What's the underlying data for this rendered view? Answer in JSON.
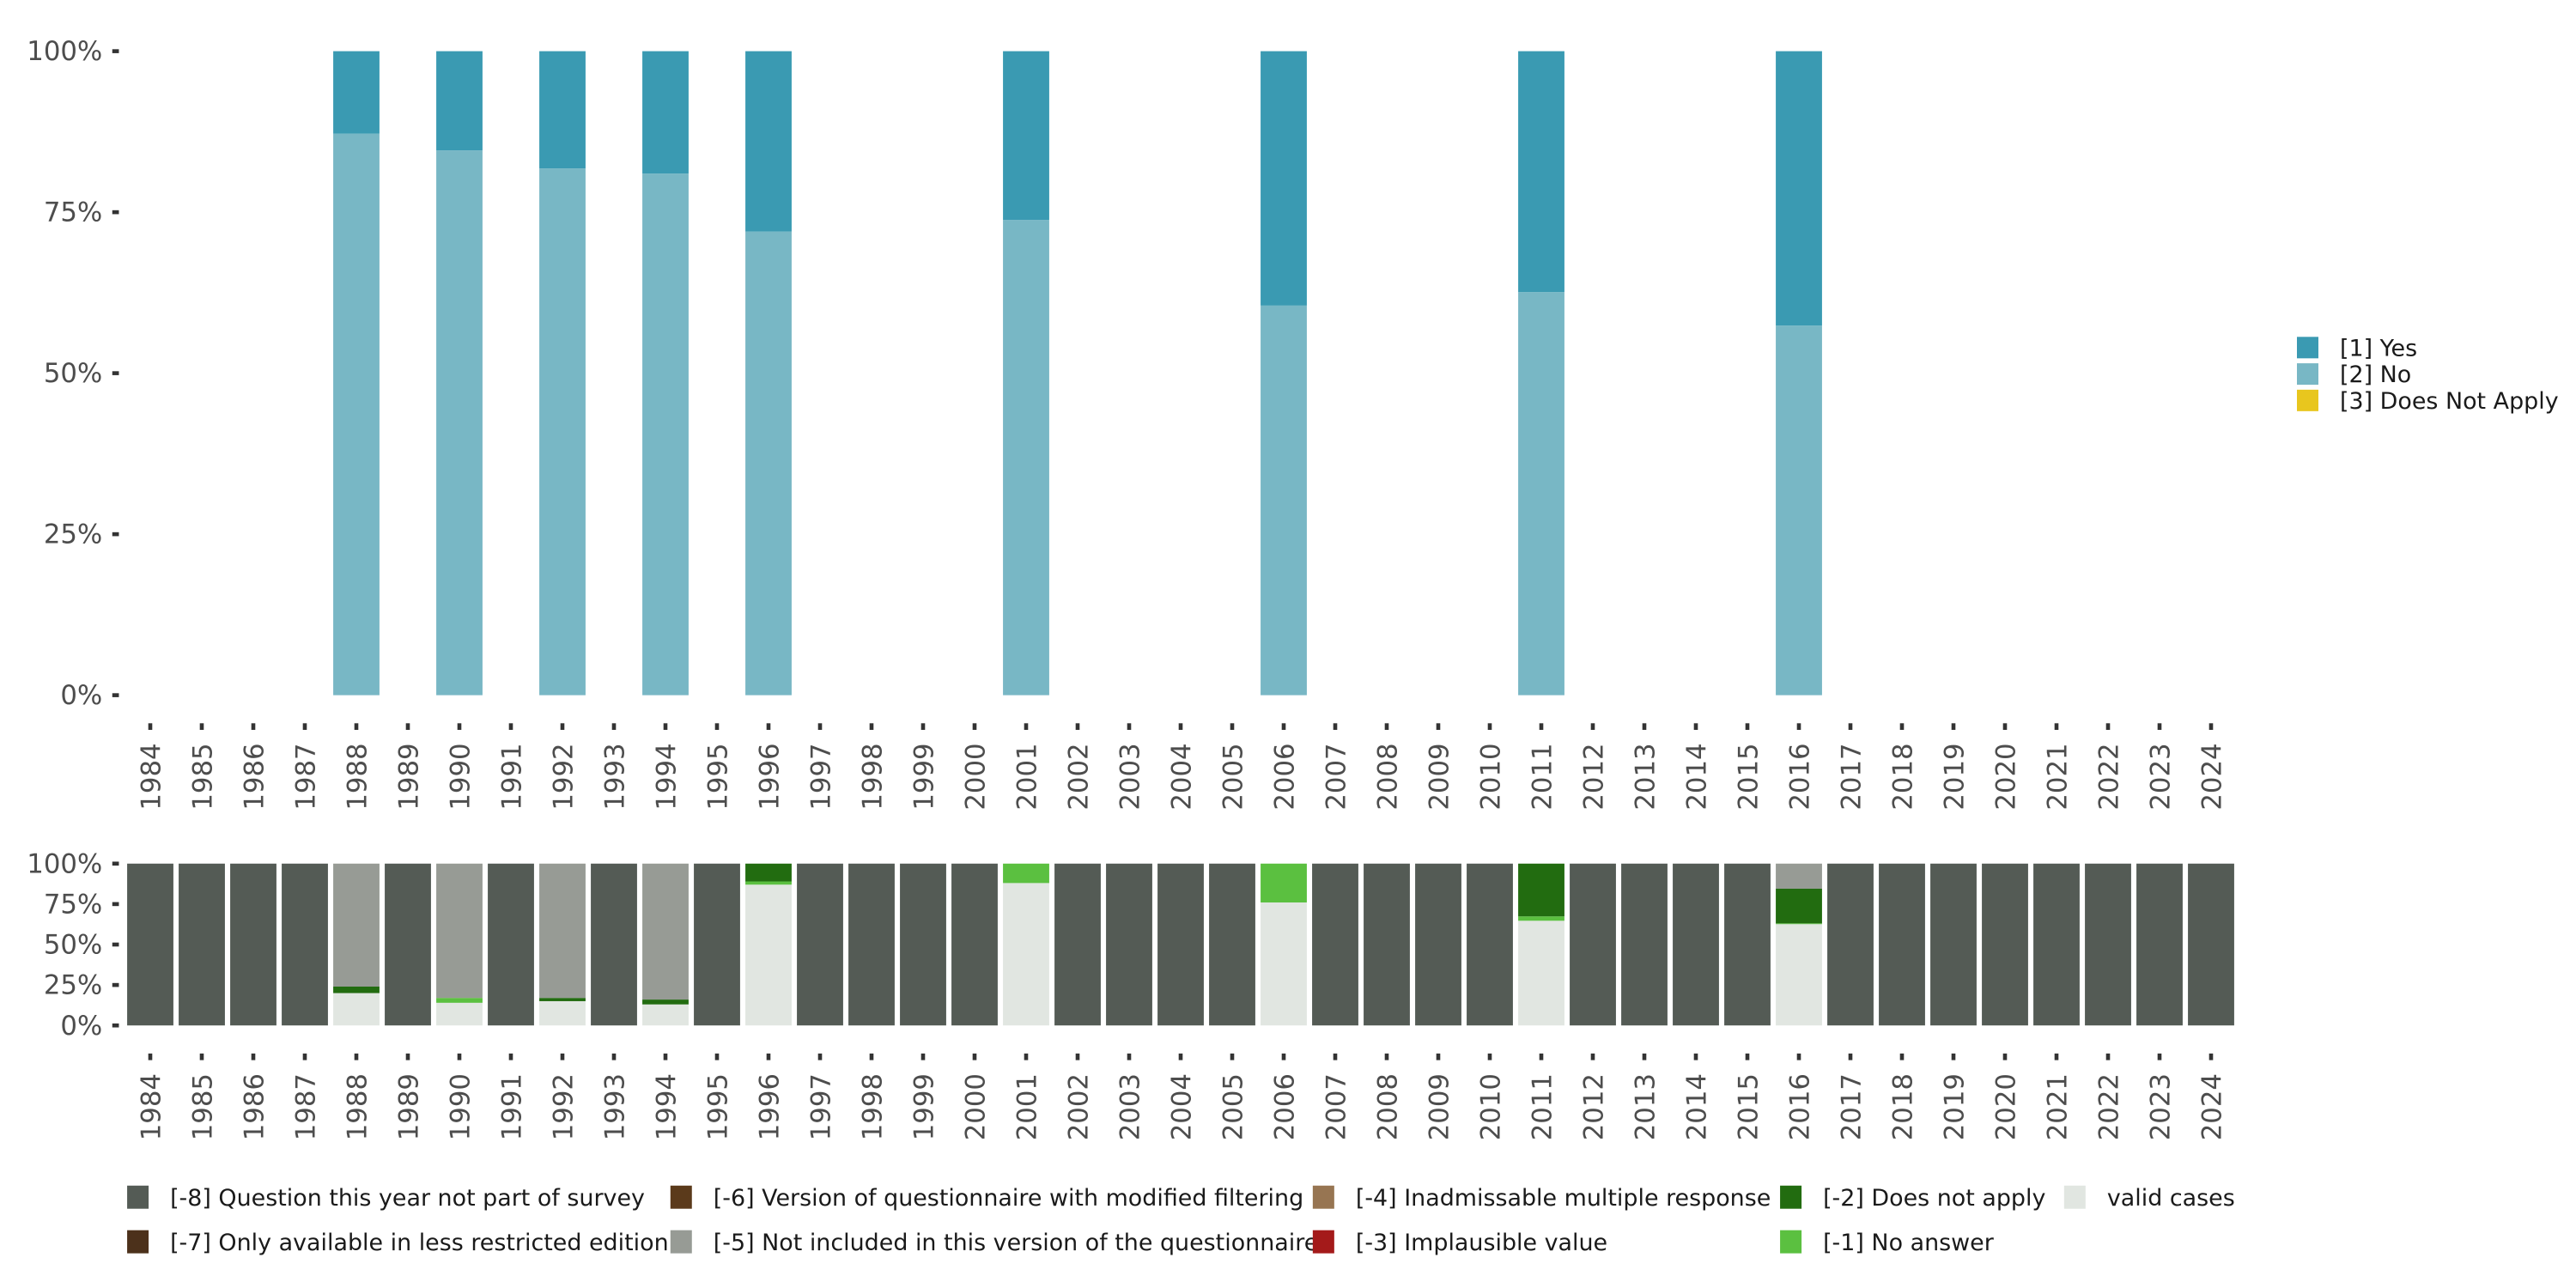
{
  "chart_data": [
    {
      "type": "bar",
      "stacked": true,
      "title": "",
      "xlabel": "",
      "ylabel": "",
      "ylim": [
        0,
        100
      ],
      "y_ticks": [
        "0%",
        "25%",
        "50%",
        "75%",
        "100%"
      ],
      "categories": [
        "1984",
        "1985",
        "1986",
        "1987",
        "1988",
        "1989",
        "1990",
        "1991",
        "1992",
        "1993",
        "1994",
        "1995",
        "1996",
        "1997",
        "1998",
        "1999",
        "2000",
        "2001",
        "2002",
        "2003",
        "2004",
        "2005",
        "2006",
        "2007",
        "2008",
        "2009",
        "2010",
        "2011",
        "2012",
        "2013",
        "2014",
        "2015",
        "2016",
        "2017",
        "2018",
        "2019",
        "2020",
        "2021",
        "2022",
        "2023",
        "2024"
      ],
      "legend_position": "right",
      "series": [
        {
          "name": "[2] No",
          "color": "#78b7c5",
          "values": {
            "1988": 87.2,
            "1990": 84.6,
            "1992": 81.8,
            "1994": 81.0,
            "1996": 72.0,
            "2001": 73.8,
            "2006": 60.5,
            "2011": 62.6,
            "2016": 57.4
          }
        },
        {
          "name": "[1] Yes",
          "color": "#3a9ab2",
          "values": {
            "1988": 12.8,
            "1990": 15.4,
            "1992": 18.2,
            "1994": 19.0,
            "1996": 28.0,
            "2001": 26.2,
            "2006": 39.5,
            "2011": 37.4,
            "2016": 42.6
          }
        },
        {
          "name": "[3] Does Not Apply",
          "color": "#e8c61e",
          "values": {}
        }
      ],
      "legend_order": [
        "[1] Yes",
        "[2] No",
        "[3] Does Not Apply"
      ]
    },
    {
      "type": "bar",
      "stacked": true,
      "title": "",
      "xlabel": "",
      "ylabel": "",
      "ylim": [
        0,
        100
      ],
      "y_ticks": [
        "0%",
        "25%",
        "50%",
        "75%",
        "100%"
      ],
      "categories": [
        "1984",
        "1985",
        "1986",
        "1987",
        "1988",
        "1989",
        "1990",
        "1991",
        "1992",
        "1993",
        "1994",
        "1995",
        "1996",
        "1997",
        "1998",
        "1999",
        "2000",
        "2001",
        "2002",
        "2003",
        "2004",
        "2005",
        "2006",
        "2007",
        "2008",
        "2009",
        "2010",
        "2011",
        "2012",
        "2013",
        "2014",
        "2015",
        "2016",
        "2017",
        "2018",
        "2019",
        "2020",
        "2021",
        "2022",
        "2023",
        "2024"
      ],
      "legend_position": "bottom",
      "series": [
        {
          "name": "valid cases",
          "color": "#e1e6e1",
          "values": {
            "1988": 20,
            "1990": 14,
            "1992": 15,
            "1994": 13,
            "1996": 87,
            "2001": 88,
            "2006": 76,
            "2011": 64.7,
            "2016": 62.6
          }
        },
        {
          "name": "[-1] No answer",
          "color": "#5bc040",
          "values": {
            "1990": 3,
            "1996": 2,
            "2001": 12,
            "2006": 24,
            "2011": 2.7,
            "2016": 0.5
          }
        },
        {
          "name": "[-2] Does not apply",
          "color": "#226c10",
          "values": {
            "1988": 4,
            "1992": 2,
            "1994": 3,
            "1996": 11,
            "2011": 32.6,
            "2016": 21.4
          }
        },
        {
          "name": "[-3] Implausible value",
          "color": "#a41a1a",
          "values": {}
        },
        {
          "name": "[-4] Inadmissable multiple response",
          "color": "#977552",
          "values": {}
        },
        {
          "name": "[-5] Not included in this version of the questionnaire",
          "color": "#979b95",
          "values": {
            "1988": 76,
            "1990": 83,
            "1992": 83,
            "1994": 84,
            "2016": 15.5
          }
        },
        {
          "name": "[-6] Version of questionnaire with modified filtering",
          "color": "#5b3a1b",
          "values": {}
        },
        {
          "name": "[-7] Only available in less restricted edition",
          "color": "#4c311b",
          "values": {}
        },
        {
          "name": "[-8] Question this year not part of survey",
          "color": "#545b55",
          "values": {
            "1984": 100,
            "1985": 100,
            "1986": 100,
            "1987": 100,
            "1989": 100,
            "1991": 100,
            "1993": 100,
            "1995": 100,
            "1997": 100,
            "1998": 100,
            "1999": 100,
            "2000": 100,
            "2002": 100,
            "2003": 100,
            "2004": 100,
            "2005": 100,
            "2007": 100,
            "2008": 100,
            "2009": 100,
            "2010": 100,
            "2012": 100,
            "2013": 100,
            "2014": 100,
            "2015": 100,
            "2017": 100,
            "2018": 100,
            "2019": 100,
            "2020": 100,
            "2021": 100,
            "2022": 100,
            "2023": 100,
            "2024": 100
          }
        }
      ],
      "legend_order": [
        "[-8] Question this year not part of survey",
        "[-7] Only available in less restricted edition",
        "[-6] Version of questionnaire with modified filtering",
        "[-5] Not included in this version of the questionnaire",
        "[-4] Inadmissable multiple response",
        "[-3] Implausible value",
        "[-2] Does not apply",
        "[-1] No answer",
        "valid cases"
      ]
    }
  ]
}
